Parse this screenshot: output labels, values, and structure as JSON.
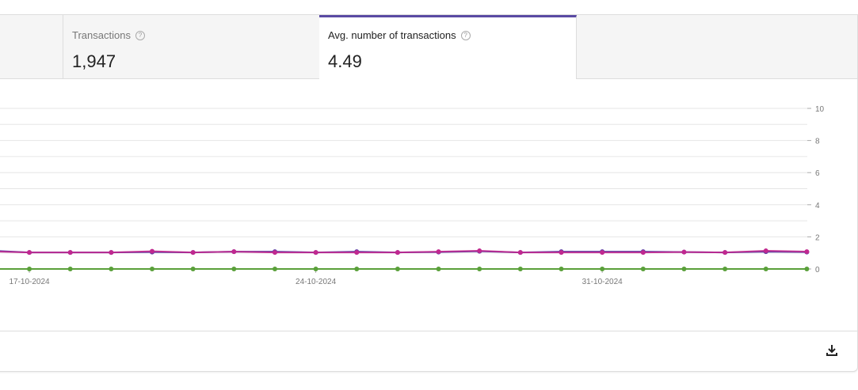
{
  "tabs": [
    {
      "label": "",
      "value": ""
    },
    {
      "label": "Transactions",
      "value": "1,947",
      "help_icon": "question-circle-icon"
    },
    {
      "label": "Avg. number of transactions",
      "value": "4.49",
      "help_icon": "question-circle-icon",
      "active": true
    }
  ],
  "colors": {
    "accent": "#5a4aa3",
    "series_purple": "#5b3fa6",
    "series_magenta": "#c0288f",
    "series_blue": "#6f97c6",
    "series_green": "#5aa03a"
  },
  "chart_data": {
    "type": "line",
    "x": [
      "16-10-2024",
      "17-10-2024",
      "18-10-2024",
      "19-10-2024",
      "20-10-2024",
      "21-10-2024",
      "22-10-2024",
      "23-10-2024",
      "24-10-2024",
      "25-10-2024",
      "26-10-2024",
      "27-10-2024",
      "28-10-2024",
      "29-10-2024",
      "30-10-2024",
      "31-10-2024",
      "01-11-2024",
      "02-11-2024",
      "03-11-2024",
      "04-11-2024",
      "05-11-2024"
    ],
    "x_tick_labels": [
      "17-10-2024",
      "24-10-2024",
      "31-10-2024"
    ],
    "y_tick_labels": [
      "0",
      "2",
      "4",
      "6",
      "8",
      "10"
    ],
    "ylim": [
      0,
      10
    ],
    "y_axis_position": "right",
    "grid": true,
    "series": [
      {
        "color": "#5b3fa6",
        "values": [
          1.15,
          1.03,
          1.03,
          1.03,
          1.05,
          1.03,
          1.08,
          1.08,
          1.03,
          1.08,
          1.03,
          1.05,
          1.1,
          1.03,
          1.08,
          1.08,
          1.08,
          1.05,
          1.03,
          1.08,
          1.05
        ]
      },
      {
        "color": "#c0288f",
        "values": [
          1.1,
          1.03,
          1.03,
          1.03,
          1.1,
          1.03,
          1.08,
          1.03,
          1.03,
          1.03,
          1.03,
          1.08,
          1.13,
          1.03,
          1.03,
          1.03,
          1.03,
          1.05,
          1.03,
          1.13,
          1.08
        ]
      },
      {
        "color": "#6f97c6",
        "values": [
          0,
          0,
          0,
          0,
          0,
          0,
          0,
          0,
          0,
          0,
          0,
          0,
          0,
          0,
          0,
          0,
          0,
          0,
          0,
          0,
          0
        ]
      },
      {
        "color": "#5aa03a",
        "values": [
          0,
          0,
          0,
          0,
          0,
          0,
          0,
          0,
          0,
          0,
          0,
          0,
          0,
          0,
          0,
          0,
          0,
          0,
          0,
          0,
          0
        ]
      }
    ]
  },
  "footer": {
    "download_icon": "download-icon"
  }
}
